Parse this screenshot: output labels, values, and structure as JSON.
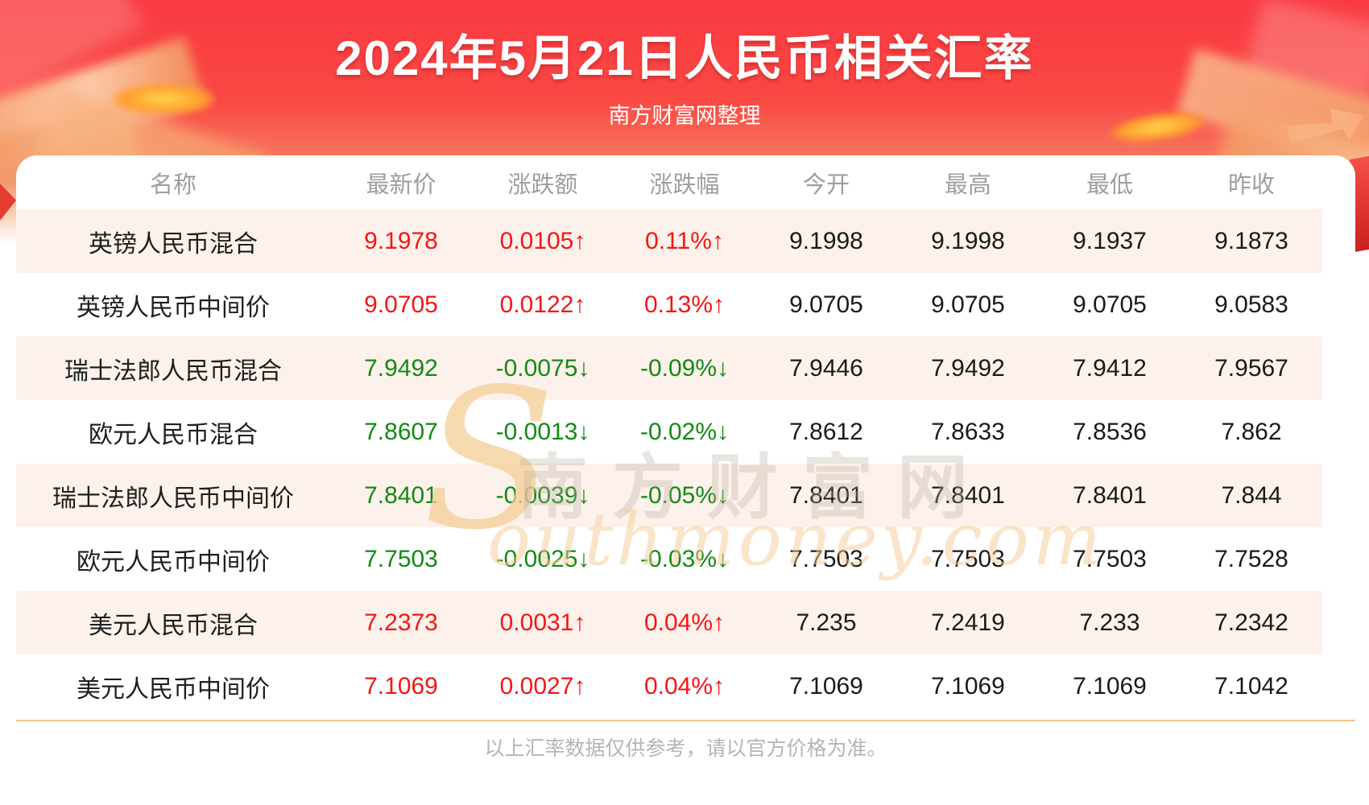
{
  "page": {
    "title": "2024年5月21日人民币相关汇率",
    "subtitle": "南方财富网整理",
    "footnote": "以上汇率数据仅供参考，请以官方价格为准。"
  },
  "watermark": {
    "initial": "S",
    "cn": "南方财富网",
    "en": "outhmoney.com"
  },
  "glyphs": {
    "arrow_up": "↑",
    "arrow_down": "↓"
  },
  "theme": {
    "up-color": "#f51515",
    "down-color": "#128a12",
    "row-alt": "#fdf2eb",
    "divider": "#f6c28e",
    "banner-red": "#f93a42"
  },
  "chart_data": {
    "type": "table",
    "title": "2024年5月21日人民币相关汇率",
    "columns": [
      "名称",
      "最新价",
      "涨跌额",
      "涨跌幅",
      "今开",
      "最高",
      "最低",
      "昨收"
    ],
    "rows": [
      {
        "name": "英镑人民币混合",
        "trend": "up",
        "latest": "9.1978",
        "change": "0.0105",
        "change_pct": "0.11%",
        "open": "9.1998",
        "high": "9.1998",
        "low": "9.1937",
        "prev_close": "9.1873"
      },
      {
        "name": "英镑人民币中间价",
        "trend": "up",
        "latest": "9.0705",
        "change": "0.0122",
        "change_pct": "0.13%",
        "open": "9.0705",
        "high": "9.0705",
        "low": "9.0705",
        "prev_close": "9.0583"
      },
      {
        "name": "瑞士法郎人民币混合",
        "trend": "down",
        "latest": "7.9492",
        "change": "-0.0075",
        "change_pct": "-0.09%",
        "open": "7.9446",
        "high": "7.9492",
        "low": "7.9412",
        "prev_close": "7.9567"
      },
      {
        "name": "欧元人民币混合",
        "trend": "down",
        "latest": "7.8607",
        "change": "-0.0013",
        "change_pct": "-0.02%",
        "open": "7.8612",
        "high": "7.8633",
        "low": "7.8536",
        "prev_close": "7.862"
      },
      {
        "name": "瑞士法郎人民币中间价",
        "trend": "down",
        "latest": "7.8401",
        "change": "-0.0039",
        "change_pct": "-0.05%",
        "open": "7.8401",
        "high": "7.8401",
        "low": "7.8401",
        "prev_close": "7.844"
      },
      {
        "name": "欧元人民币中间价",
        "trend": "down",
        "latest": "7.7503",
        "change": "-0.0025",
        "change_pct": "-0.03%",
        "open": "7.7503",
        "high": "7.7503",
        "low": "7.7503",
        "prev_close": "7.7528"
      },
      {
        "name": "美元人民币混合",
        "trend": "up",
        "latest": "7.2373",
        "change": "0.0031",
        "change_pct": "0.04%",
        "open": "7.235",
        "high": "7.2419",
        "low": "7.233",
        "prev_close": "7.2342"
      },
      {
        "name": "美元人民币中间价",
        "trend": "up",
        "latest": "7.1069",
        "change": "0.0027",
        "change_pct": "0.04%",
        "open": "7.1069",
        "high": "7.1069",
        "low": "7.1069",
        "prev_close": "7.1042"
      }
    ]
  }
}
